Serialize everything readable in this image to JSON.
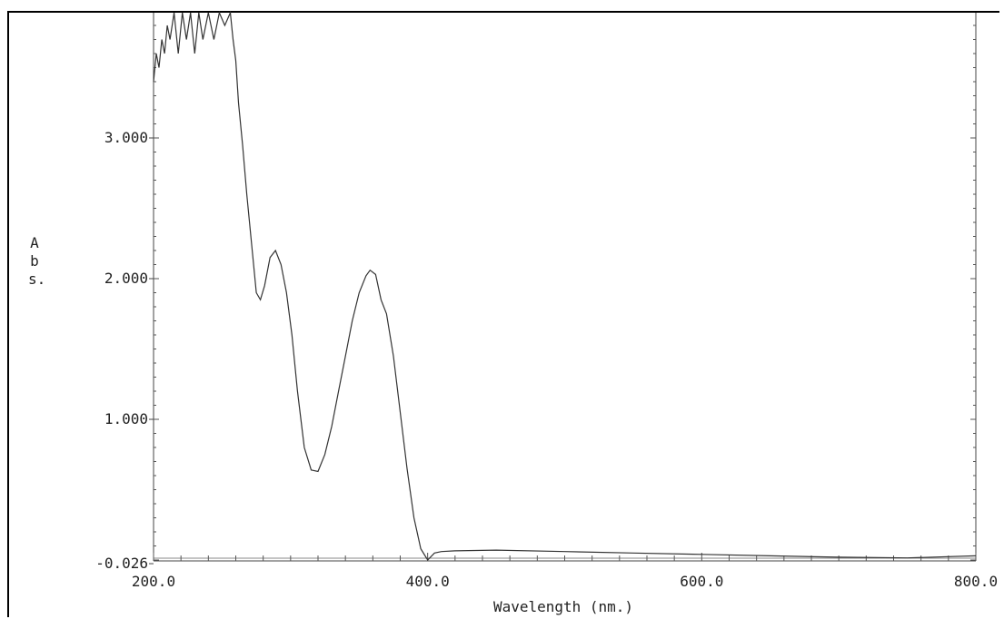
{
  "chart_data": {
    "type": "line",
    "title": "",
    "xlabel": "Wavelength (nm.)",
    "ylabel": "Abs.",
    "xlim": [
      200.0,
      800.0
    ],
    "ylim": [
      -0.026,
      3.9
    ],
    "x_tick_labels": [
      "200.0",
      "400.0",
      "600.0",
      "800.0"
    ],
    "x_ticks": [
      200,
      400,
      600,
      800
    ],
    "y_tick_labels": [
      "-0.026",
      "1.000",
      "2.000",
      "3.000"
    ],
    "y_ticks": [
      -0.026,
      1.0,
      2.0,
      3.0
    ],
    "grid": false,
    "series": [
      {
        "x": [
          200,
          202,
          204,
          206,
          208,
          210,
          212,
          215,
          218,
          221,
          224,
          227,
          230,
          233,
          236,
          240,
          244,
          248,
          252,
          256,
          258,
          260,
          262,
          265,
          268,
          272,
          275,
          278,
          281,
          285,
          289,
          293,
          297,
          301,
          305,
          310,
          315,
          320,
          325,
          330,
          335,
          340,
          345,
          350,
          355,
          358,
          362,
          366,
          370,
          375,
          380,
          385,
          390,
          395,
          400,
          405,
          410,
          420,
          450,
          500,
          550,
          600,
          650,
          700,
          750,
          800
        ],
        "y": [
          3.4,
          3.6,
          3.5,
          3.7,
          3.6,
          3.8,
          3.7,
          3.9,
          3.6,
          3.9,
          3.7,
          3.9,
          3.6,
          3.9,
          3.7,
          3.9,
          3.7,
          3.9,
          3.8,
          3.9,
          3.7,
          3.55,
          3.25,
          2.95,
          2.6,
          2.2,
          1.9,
          1.85,
          1.95,
          2.15,
          2.2,
          2.1,
          1.9,
          1.6,
          1.2,
          0.8,
          0.64,
          0.63,
          0.75,
          0.95,
          1.2,
          1.45,
          1.7,
          1.9,
          2.02,
          2.06,
          2.03,
          1.85,
          1.75,
          1.45,
          1.05,
          0.65,
          0.3,
          0.08,
          0.0,
          0.05,
          0.06,
          0.065,
          0.07,
          0.06,
          0.05,
          0.04,
          0.03,
          0.02,
          0.015,
          0.03
        ]
      }
    ]
  }
}
